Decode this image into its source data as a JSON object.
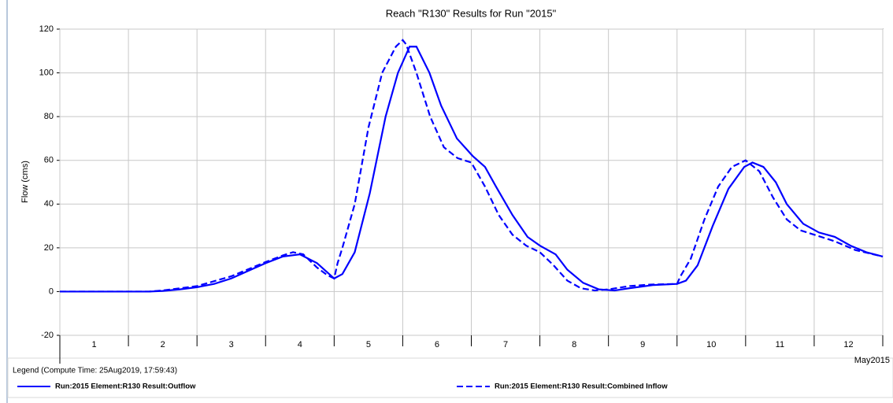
{
  "chart_data": {
    "type": "line",
    "title": "Reach \"R130\" Results for Run \"2015\"",
    "y_label": "Flow (cms)",
    "x_period_label": "May2015",
    "legend_title": "Legend (Compute Time: 25Aug2019, 17:59:43)",
    "xlim": [
      0,
      12
    ],
    "xticks": [
      0,
      1,
      2,
      3,
      4,
      5,
      6,
      7,
      8,
      9,
      10,
      11,
      12
    ],
    "day_labels": [
      {
        "value": 0.5,
        "label": "1"
      },
      {
        "value": 1.5,
        "label": "2"
      },
      {
        "value": 2.5,
        "label": "3"
      },
      {
        "value": 3.5,
        "label": "4"
      },
      {
        "value": 4.5,
        "label": "5"
      },
      {
        "value": 5.5,
        "label": "6"
      },
      {
        "value": 6.5,
        "label": "7"
      },
      {
        "value": 7.5,
        "label": "8"
      },
      {
        "value": 8.5,
        "label": "9"
      },
      {
        "value": 9.5,
        "label": "10"
      },
      {
        "value": 10.5,
        "label": "11"
      },
      {
        "value": 11.5,
        "label": "12"
      }
    ],
    "ylim": [
      -20,
      120
    ],
    "yticks": [
      -20,
      0,
      20,
      40,
      60,
      80,
      100,
      120
    ],
    "grid": true,
    "series": [
      {
        "name": "Run:2015 Element:R130 Result:Outflow",
        "color": "#0000ff",
        "line_style": "solid",
        "x": [
          0,
          0.5,
          1,
          1.3,
          1.5,
          1.75,
          2,
          2.25,
          2.5,
          2.75,
          3,
          3.25,
          3.5,
          3.75,
          4,
          4.12,
          4.3,
          4.52,
          4.75,
          4.93,
          5.1,
          5.2,
          5.39,
          5.56,
          5.79,
          6.02,
          6.2,
          6.36,
          6.6,
          6.82,
          7,
          7.23,
          7.4,
          7.63,
          7.86,
          8.09,
          8.3,
          8.66,
          9,
          9.13,
          9.3,
          9.52,
          9.75,
          9.98,
          10.1,
          10.26,
          10.44,
          10.6,
          10.84,
          11.07,
          11.3,
          11.53,
          11.76,
          12
        ],
        "values": [
          0,
          0,
          0,
          0,
          0.3,
          1,
          2,
          3.5,
          6,
          9.5,
          13,
          16,
          17,
          13,
          6,
          8,
          18,
          45,
          80,
          100,
          112,
          112,
          100,
          85,
          70,
          62,
          57,
          48,
          35,
          25,
          21,
          17,
          10,
          4,
          1,
          0.5,
          1.5,
          3,
          3.5,
          5,
          12,
          30,
          47,
          57,
          59,
          57,
          50,
          40,
          31,
          27,
          25,
          21,
          18,
          16
        ]
      },
      {
        "name": "Run:2015 Element:R130 Result:Combined Inflow",
        "color": "#0000ff",
        "line_style": "dashed",
        "x": [
          0,
          0.5,
          1,
          1.3,
          1.5,
          2,
          2.5,
          3,
          3.25,
          3.4,
          3.55,
          3.75,
          3.9,
          4,
          4.05,
          4.12,
          4.3,
          4.5,
          4.7,
          4.9,
          5,
          5.05,
          5.2,
          5.4,
          5.6,
          5.8,
          6,
          6.2,
          6.4,
          6.6,
          6.8,
          7,
          7.2,
          7.4,
          7.6,
          7.8,
          8,
          8.3,
          8.6,
          9,
          9.05,
          9.2,
          9.4,
          9.6,
          9.8,
          10,
          10.2,
          10.4,
          10.6,
          10.8,
          11,
          11.3,
          11.6,
          12
        ],
        "values": [
          0,
          0,
          0,
          0,
          0.5,
          2.5,
          7,
          13.5,
          16.5,
          18,
          17,
          11,
          7.5,
          6,
          13,
          20,
          40,
          75,
          100,
          112,
          115,
          113,
          100,
          80,
          66,
          61,
          59,
          48,
          35,
          26,
          21,
          18,
          12,
          5,
          1.5,
          0.5,
          1,
          2.5,
          3.2,
          3.5,
          7,
          15,
          33,
          48,
          57,
          60,
          55,
          43,
          33,
          28,
          26,
          23,
          19,
          16
        ]
      }
    ]
  }
}
